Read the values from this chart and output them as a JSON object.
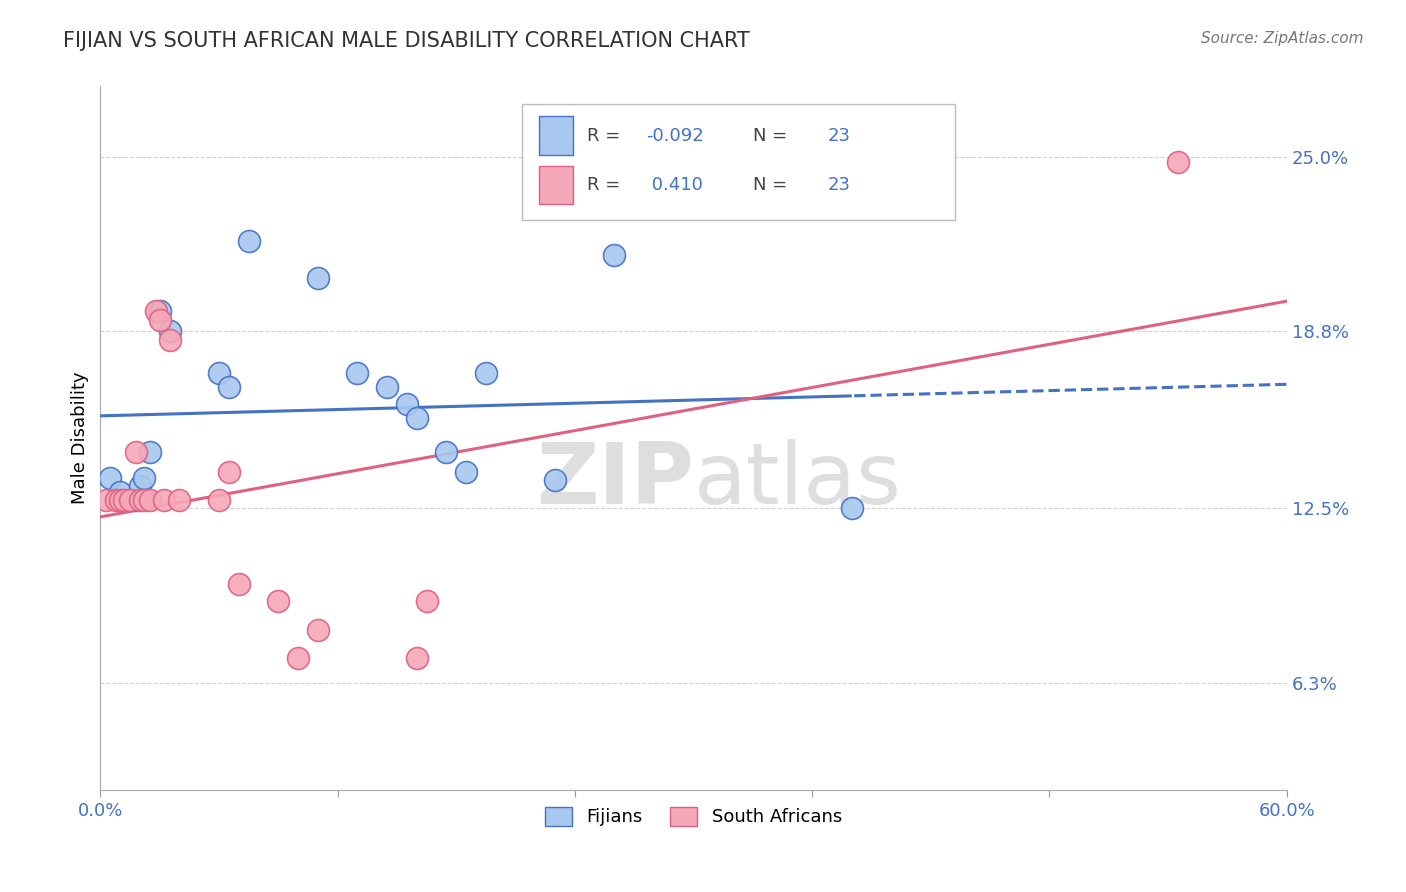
{
  "title": "FIJIAN VS SOUTH AFRICAN MALE DISABILITY CORRELATION CHART",
  "source_text": "Source: ZipAtlas.com",
  "ylabel": "Male Disability",
  "xlim": [
    0.0,
    0.6
  ],
  "ylim": [
    0.025,
    0.275
  ],
  "xticks": [
    0.0,
    0.12,
    0.24,
    0.36,
    0.48,
    0.6
  ],
  "xtick_labels": [
    "0.0%",
    "",
    "",
    "",
    "",
    "60.0%"
  ],
  "ytick_labels": [
    "6.3%",
    "12.5%",
    "18.8%",
    "25.0%"
  ],
  "yticks": [
    0.063,
    0.125,
    0.188,
    0.25
  ],
  "r_fijian": -0.092,
  "r_sa": 0.41,
  "n_fijian": 23,
  "n_sa": 23,
  "fijian_color": "#A8C8F0",
  "sa_color": "#F5A8B8",
  "fijian_line_color": "#4472C4",
  "sa_line_color": "#E06080",
  "watermark_color": "#DEDEDE",
  "fijians_x": [
    0.005,
    0.01,
    0.015,
    0.018,
    0.02,
    0.022,
    0.025,
    0.03,
    0.035,
    0.06,
    0.065,
    0.075,
    0.11,
    0.13,
    0.145,
    0.155,
    0.16,
    0.175,
    0.185,
    0.195,
    0.23,
    0.26,
    0.38
  ],
  "fijians_y": [
    0.136,
    0.131,
    0.128,
    0.128,
    0.133,
    0.136,
    0.145,
    0.195,
    0.188,
    0.173,
    0.168,
    0.22,
    0.207,
    0.173,
    0.168,
    0.162,
    0.157,
    0.145,
    0.138,
    0.173,
    0.135,
    0.215,
    0.125
  ],
  "sa_x": [
    0.003,
    0.008,
    0.01,
    0.012,
    0.015,
    0.018,
    0.02,
    0.022,
    0.025,
    0.028,
    0.03,
    0.032,
    0.035,
    0.04,
    0.06,
    0.065,
    0.07,
    0.09,
    0.1,
    0.11,
    0.16,
    0.165,
    0.545
  ],
  "sa_y": [
    0.128,
    0.128,
    0.128,
    0.128,
    0.128,
    0.145,
    0.128,
    0.128,
    0.128,
    0.195,
    0.192,
    0.128,
    0.185,
    0.128,
    0.128,
    0.138,
    0.098,
    0.092,
    0.072,
    0.082,
    0.072,
    0.092,
    0.248
  ]
}
